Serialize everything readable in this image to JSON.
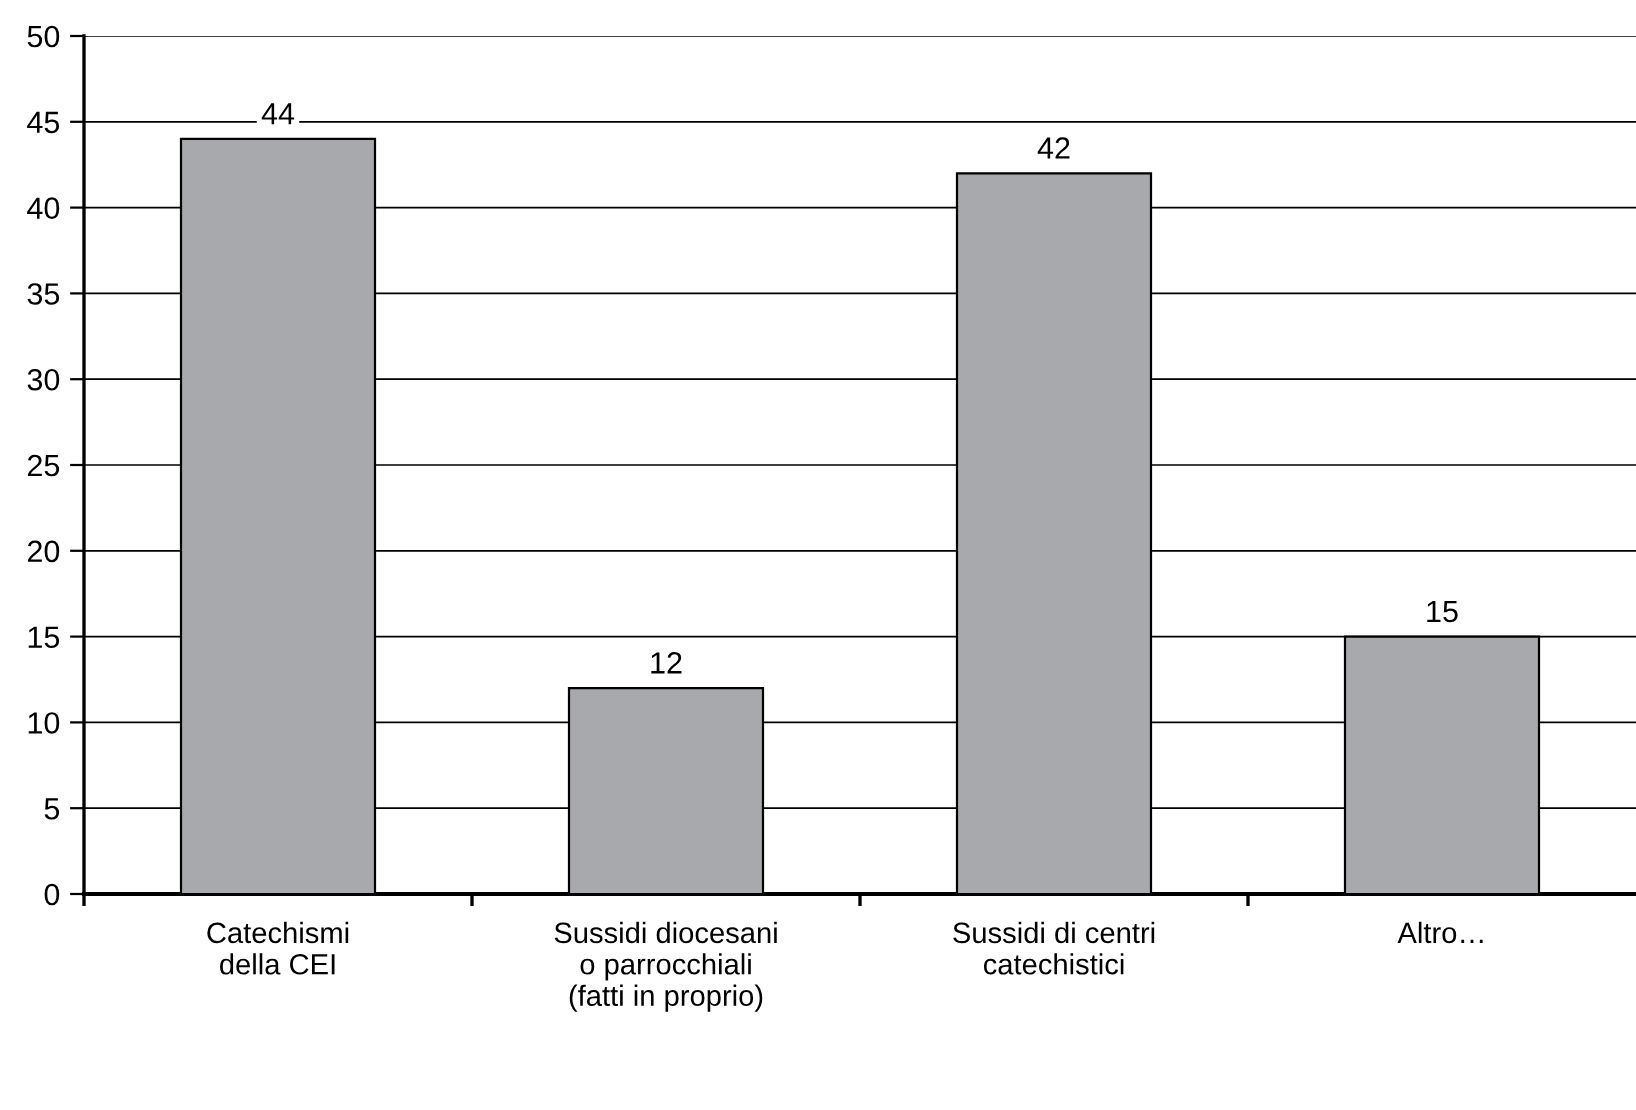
{
  "chart_data": {
    "type": "bar",
    "categories": [
      "Catechismi\ndella CEI",
      "Sussidi diocesani\no parrocchiali\n(fatti in proprio)",
      "Sussidi di centri\ncatechistici",
      "Altro…"
    ],
    "values": [
      44,
      12,
      42,
      15
    ],
    "color": "#a7a9ac",
    "ylim": [
      0,
      50
    ],
    "yticks": [
      0,
      5,
      10,
      15,
      20,
      25,
      30,
      35,
      40,
      45,
      50
    ],
    "grid": "y",
    "data_labels": true,
    "legend": false
  }
}
